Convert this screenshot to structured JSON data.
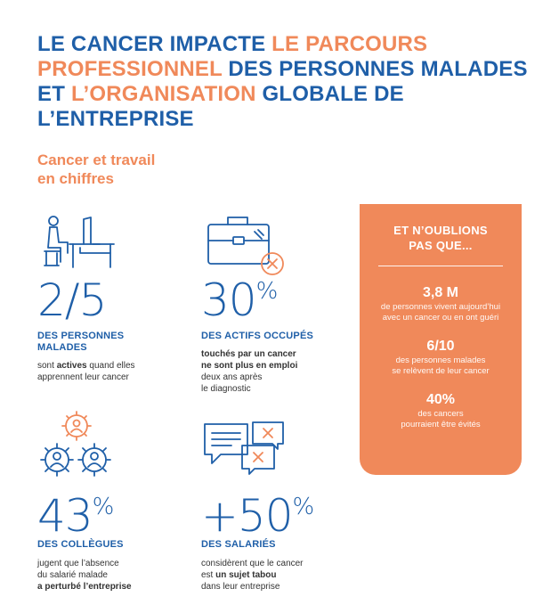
{
  "headline": {
    "part1": "LE CANCER IMPACTE ",
    "part2": "LE PARCOURS PROFESSIONNEL",
    "part3": " DES PERSONNES MALADES ET ",
    "part4": "L’ORGANISATION",
    "part5": " GLOBALE DE L’ENTREPRISE"
  },
  "subtitle": {
    "line1": "Cancer et travail",
    "line2": "en chiffres"
  },
  "stats": {
    "s1": {
      "value": "2/5",
      "label_line1": "DES PERSONNES",
      "label_line2": "MALADES",
      "desc_pre": "sont ",
      "desc_bold": "actives",
      "desc_post": " quand elles",
      "desc_line2": "apprennent leur cancer",
      "icon": "desk-worker-icon"
    },
    "s2": {
      "value": "30",
      "unit": "%",
      "label": "DES ACTIFS OCCUPÉS",
      "desc_bold1": "touchés par un cancer",
      "desc_bold2": "ne sont plus en emploi",
      "desc_line3": "deux ans après",
      "desc_line4": "le diagnostic",
      "icon": "briefcase-cross-icon"
    },
    "s3": {
      "value": "43",
      "unit": "%",
      "label": "DES COLLÈGUES",
      "desc_line1": "jugent que l’absence",
      "desc_line2": "du salarié malade",
      "desc_bold": "a perturbé l’entreprise",
      "icon": "people-gears-icon"
    },
    "s4": {
      "value": "+50",
      "unit": "%",
      "label": "DES SALARIÉS",
      "desc_line1": "considèrent que le cancer",
      "desc_pre": "est ",
      "desc_bold": "un sujet tabou",
      "desc_line3": "dans leur entreprise",
      "icon": "chat-bubbles-icon"
    }
  },
  "panel": {
    "title_line1": "ET N’OUBLIONS",
    "title_line2": "PAS QUE...",
    "items": [
      {
        "num": "3,8 M",
        "txt_line1": "de personnes vivent aujourd’hui",
        "txt_line2": "avec un cancer ou en ont guéri"
      },
      {
        "num": "6/10",
        "txt_line1": "des personnes malades",
        "txt_line2": "se relèvent de leur cancer"
      },
      {
        "num": "40%",
        "txt_line1": "des cancers",
        "txt_line2": "pourraient être évités"
      }
    ]
  },
  "colors": {
    "blue": "#1f5fa8",
    "orange": "#f0895a"
  }
}
